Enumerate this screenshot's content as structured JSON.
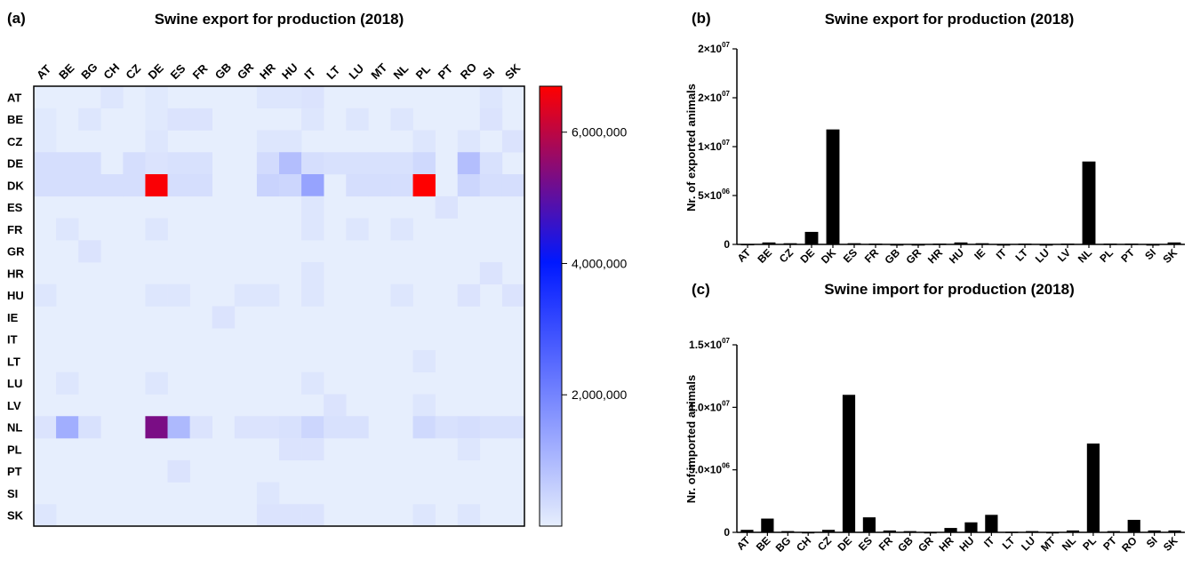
{
  "panels": {
    "a": "(a)",
    "b": "(b)",
    "c": "(c)"
  },
  "colors": {
    "low": "#e6eefd",
    "mid": "#0018ff",
    "high": "#ff0000",
    "bar": "#000000"
  },
  "chart_data": [
    {
      "id": "heatmap",
      "type": "heatmap",
      "title": "Swine export for production (2018)",
      "columns": [
        "AT",
        "BE",
        "BG",
        "CH",
        "CZ",
        "DE",
        "ES",
        "FR",
        "GB",
        "GR",
        "HR",
        "HU",
        "IT",
        "LT",
        "LU",
        "MT",
        "NL",
        "PL",
        "PT",
        "RO",
        "SI",
        "SK"
      ],
      "rows": [
        "AT",
        "BE",
        "CZ",
        "DE",
        "DK",
        "ES",
        "FR",
        "GR",
        "HR",
        "HU",
        "IE",
        "IT",
        "LT",
        "LU",
        "LV",
        "NL",
        "PL",
        "PT",
        "SI",
        "SK"
      ],
      "colorbar": {
        "min": 0,
        "max": 6700000,
        "ticks": [
          2000000,
          4000000,
          6000000
        ],
        "tick_labels": [
          "2,000,000",
          "4,000,000",
          "6,000,000"
        ]
      },
      "cells": [
        [
          "AT",
          "CH",
          150000
        ],
        [
          "AT",
          "DE",
          100000
        ],
        [
          "AT",
          "HR",
          150000
        ],
        [
          "AT",
          "HU",
          150000
        ],
        [
          "AT",
          "IT",
          200000
        ],
        [
          "AT",
          "SI",
          150000
        ],
        [
          "BE",
          "AT",
          100000
        ],
        [
          "BE",
          "BG",
          150000
        ],
        [
          "BE",
          "DE",
          100000
        ],
        [
          "BE",
          "ES",
          200000
        ],
        [
          "BE",
          "FR",
          200000
        ],
        [
          "BE",
          "IT",
          150000
        ],
        [
          "BE",
          "LU",
          150000
        ],
        [
          "BE",
          "NL",
          150000
        ],
        [
          "BE",
          "SI",
          200000
        ],
        [
          "CZ",
          "AT",
          100000
        ],
        [
          "CZ",
          "DE",
          150000
        ],
        [
          "CZ",
          "HR",
          150000
        ],
        [
          "CZ",
          "HU",
          150000
        ],
        [
          "CZ",
          "PL",
          150000
        ],
        [
          "CZ",
          "RO",
          150000
        ],
        [
          "CZ",
          "SK",
          200000
        ],
        [
          "DE",
          "AT",
          300000
        ],
        [
          "DE",
          "BE",
          300000
        ],
        [
          "DE",
          "BG",
          300000
        ],
        [
          "DE",
          "CZ",
          300000
        ],
        [
          "DE",
          "DE",
          200000
        ],
        [
          "DE",
          "ES",
          250000
        ],
        [
          "DE",
          "FR",
          250000
        ],
        [
          "DE",
          "HR",
          350000
        ],
        [
          "DE",
          "HU",
          900000
        ],
        [
          "DE",
          "IT",
          300000
        ],
        [
          "DE",
          "LT",
          250000
        ],
        [
          "DE",
          "LU",
          250000
        ],
        [
          "DE",
          "MT",
          250000
        ],
        [
          "DE",
          "NL",
          250000
        ],
        [
          "DE",
          "PL",
          400000
        ],
        [
          "DE",
          "RO",
          900000
        ],
        [
          "DE",
          "SI",
          250000
        ],
        [
          "DK",
          "AT",
          300000
        ],
        [
          "DK",
          "BE",
          300000
        ],
        [
          "DK",
          "BG",
          300000
        ],
        [
          "DK",
          "CH",
          300000
        ],
        [
          "DK",
          "CZ",
          300000
        ],
        [
          "DK",
          "DE",
          6650000
        ],
        [
          "DK",
          "ES",
          300000
        ],
        [
          "DK",
          "FR",
          300000
        ],
        [
          "DK",
          "HR",
          500000
        ],
        [
          "DK",
          "HU",
          450000
        ],
        [
          "DK",
          "IT",
          1400000
        ],
        [
          "DK",
          "LU",
          300000
        ],
        [
          "DK",
          "MT",
          300000
        ],
        [
          "DK",
          "NL",
          300000
        ],
        [
          "DK",
          "PL",
          6700000
        ],
        [
          "DK",
          "RO",
          450000
        ],
        [
          "DK",
          "SI",
          300000
        ],
        [
          "DK",
          "SK",
          300000
        ],
        [
          "ES",
          "IT",
          150000
        ],
        [
          "ES",
          "PT",
          200000
        ],
        [
          "FR",
          "BE",
          150000
        ],
        [
          "FR",
          "DE",
          150000
        ],
        [
          "FR",
          "IT",
          150000
        ],
        [
          "FR",
          "LU",
          150000
        ],
        [
          "FR",
          "NL",
          150000
        ],
        [
          "GR",
          "BG",
          200000
        ],
        [
          "HR",
          "IT",
          150000
        ],
        [
          "HR",
          "SI",
          200000
        ],
        [
          "HU",
          "AT",
          150000
        ],
        [
          "HU",
          "DE",
          150000
        ],
        [
          "HU",
          "ES",
          150000
        ],
        [
          "HU",
          "GR",
          150000
        ],
        [
          "HU",
          "HR",
          150000
        ],
        [
          "HU",
          "IT",
          150000
        ],
        [
          "HU",
          "NL",
          150000
        ],
        [
          "HU",
          "RO",
          200000
        ],
        [
          "HU",
          "SK",
          200000
        ],
        [
          "IE",
          "GB",
          200000
        ],
        [
          "LT",
          "PL",
          150000
        ],
        [
          "LU",
          "BE",
          150000
        ],
        [
          "LU",
          "DE",
          150000
        ],
        [
          "LU",
          "IT",
          150000
        ],
        [
          "LV",
          "LT",
          200000
        ],
        [
          "LV",
          "PL",
          150000
        ],
        [
          "NL",
          "AT",
          200000
        ],
        [
          "NL",
          "BE",
          1200000
        ],
        [
          "NL",
          "BG",
          250000
        ],
        [
          "NL",
          "DE",
          5300000
        ],
        [
          "NL",
          "ES",
          1000000
        ],
        [
          "NL",
          "FR",
          200000
        ],
        [
          "NL",
          "GR",
          200000
        ],
        [
          "NL",
          "HR",
          200000
        ],
        [
          "NL",
          "HU",
          250000
        ],
        [
          "NL",
          "IT",
          450000
        ],
        [
          "NL",
          "LT",
          250000
        ],
        [
          "NL",
          "LU",
          250000
        ],
        [
          "NL",
          "PL",
          400000
        ],
        [
          "NL",
          "PT",
          250000
        ],
        [
          "NL",
          "RO",
          300000
        ],
        [
          "NL",
          "SI",
          250000
        ],
        [
          "NL",
          "SK",
          250000
        ],
        [
          "PL",
          "HU",
          200000
        ],
        [
          "PL",
          "IT",
          200000
        ],
        [
          "PL",
          "RO",
          150000
        ],
        [
          "PT",
          "ES",
          200000
        ],
        [
          "SI",
          "HR",
          150000
        ],
        [
          "SK",
          "AT",
          150000
        ],
        [
          "SK",
          "HR",
          200000
        ],
        [
          "SK",
          "HU",
          200000
        ],
        [
          "SK",
          "IT",
          200000
        ],
        [
          "SK",
          "PL",
          150000
        ],
        [
          "SK",
          "RO",
          150000
        ]
      ]
    },
    {
      "id": "export_bar",
      "type": "bar",
      "title": "Swine export for production (2018)",
      "ylabel": "Nr. of exported animals",
      "ylim": [
        0,
        25000000
      ],
      "y_ticks": [
        {
          "value": 0,
          "label": "0"
        },
        {
          "value": 5000000,
          "label": "5×10",
          "exp": "06"
        },
        {
          "value": 10000000,
          "label": "1×10",
          "exp": "07"
        },
        {
          "value": 15000000,
          "label": "2×10",
          "exp": "07"
        },
        {
          "value": 20000000,
          "label": "2×10",
          "exp": "07"
        }
      ],
      "categories": [
        "AT",
        "BE",
        "CZ",
        "DE",
        "DK",
        "ES",
        "FR",
        "GB",
        "GR",
        "HR",
        "HU",
        "IE",
        "IT",
        "LT",
        "LU",
        "LV",
        "NL",
        "PL",
        "PT",
        "SI",
        "SK"
      ],
      "values": [
        50000,
        250000,
        150000,
        1600000,
        14700000,
        150000,
        100000,
        20000,
        20000,
        100000,
        250000,
        150000,
        20000,
        100000,
        20000,
        100000,
        10600000,
        100000,
        100000,
        20000,
        250000
      ]
    },
    {
      "id": "import_bar",
      "type": "bar",
      "title": "Swine import for production (2018)",
      "ylabel": "Nr. of imported animals",
      "ylim": [
        0,
        15000000
      ],
      "y_ticks": [
        {
          "value": 0,
          "label": "0"
        },
        {
          "value": 5000000,
          "label": "5.0×10",
          "exp": "06"
        },
        {
          "value": 10000000,
          "label": "1.0×10",
          "exp": "07"
        },
        {
          "value": 15000000,
          "label": "1.5×10",
          "exp": "07"
        }
      ],
      "categories": [
        "AT",
        "BE",
        "BG",
        "CH",
        "CZ",
        "DE",
        "ES",
        "FR",
        "GB",
        "GR",
        "HR",
        "HU",
        "IT",
        "LT",
        "LU",
        "MT",
        "NL",
        "PL",
        "PT",
        "RO",
        "SI",
        "SK"
      ],
      "values": [
        200000,
        1100000,
        100000,
        20000,
        200000,
        11000000,
        1200000,
        150000,
        100000,
        20000,
        350000,
        800000,
        1400000,
        50000,
        100000,
        20000,
        150000,
        7100000,
        100000,
        1000000,
        150000,
        150000
      ]
    }
  ]
}
